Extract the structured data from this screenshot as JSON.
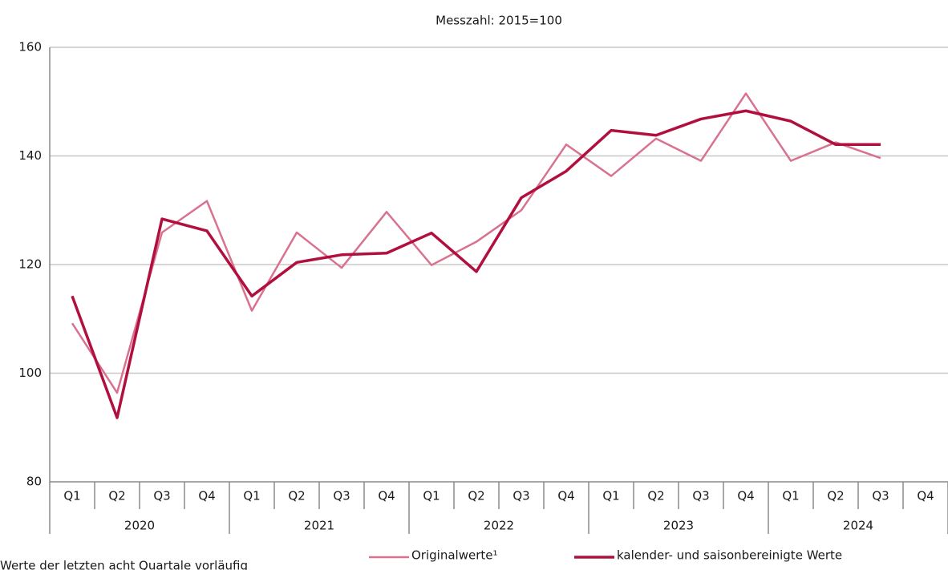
{
  "chart_data": {
    "type": "line",
    "title": "Messzahl: 2015=100",
    "categories": [
      "Q1",
      "Q2",
      "Q3",
      "Q4",
      "Q1",
      "Q2",
      "Q3",
      "Q4",
      "Q1",
      "Q2",
      "Q3",
      "Q4",
      "Q1",
      "Q2",
      "Q3",
      "Q4",
      "Q1",
      "Q2",
      "Q3",
      "Q4"
    ],
    "years": [
      "2020",
      "2021",
      "2022",
      "2023",
      "2024"
    ],
    "series": [
      {
        "name": "Originalwerte¹",
        "color": "#d9728f",
        "values": [
          109.2,
          96.4,
          125.9,
          131.7,
          111.5,
          125.9,
          119.4,
          129.7,
          119.9,
          124.2,
          130.0,
          142.1,
          136.3,
          143.2,
          139.1,
          151.5,
          139.1,
          142.5,
          139.6,
          null
        ]
      },
      {
        "name": "kalender- und saisonbereinigte Werte",
        "color": "#b1103f",
        "values": [
          114.2,
          91.8,
          128.4,
          126.2,
          114.2,
          120.4,
          121.8,
          122.1,
          125.8,
          118.7,
          132.3,
          137.2,
          144.7,
          143.8,
          146.8,
          148.3,
          146.4,
          142.1,
          142.1,
          null
        ]
      }
    ],
    "ylim": [
      80,
      160
    ],
    "yticks": [
      80,
      100,
      120,
      140,
      160
    ],
    "grid": true,
    "footnote": "Werte der letzten acht Quartale vorläufig"
  }
}
